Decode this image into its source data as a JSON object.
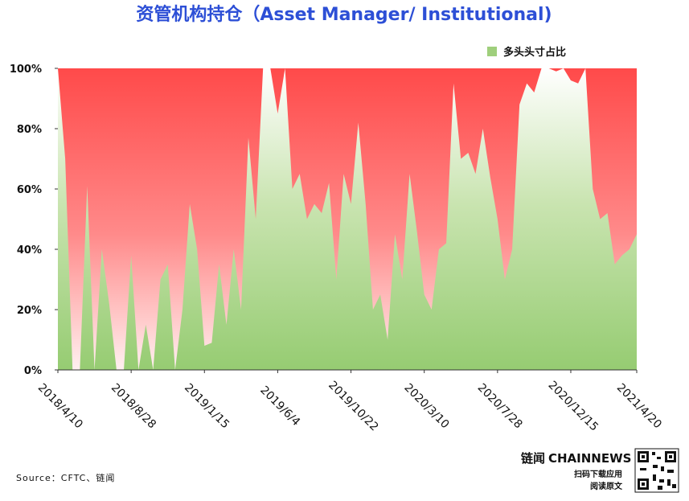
{
  "chart_data": {
    "type": "area",
    "title": "资管机构持仓（Asset Manager/ Institutional)",
    "source": "Source：CFTC、链闻",
    "brand": {
      "name": "链闻",
      "name2": "CHAINNEWS",
      "line1": "扫码下载应用",
      "line2": "阅读原文"
    },
    "legend_position": "upper right",
    "x": [
      "2018/4/10",
      "2018/4/24",
      "2018/5/8",
      "2018/5/22",
      "2018/6/5",
      "2018/6/19",
      "2018/7/3",
      "2018/7/17",
      "2018/7/31",
      "2018/8/14",
      "2018/8/28",
      "2018/9/11",
      "2018/9/25",
      "2018/10/9",
      "2018/10/23",
      "2018/11/6",
      "2018/11/20",
      "2018/12/4",
      "2018/12/18",
      "2019/1/1",
      "2019/1/15",
      "2019/1/29",
      "2019/2/12",
      "2019/2/26",
      "2019/3/12",
      "2019/3/26",
      "2019/4/9",
      "2019/4/23",
      "2019/5/7",
      "2019/5/21",
      "2019/6/4",
      "2019/6/18",
      "2019/7/2",
      "2019/7/16",
      "2019/7/30",
      "2019/8/13",
      "2019/8/27",
      "2019/9/10",
      "2019/9/24",
      "2019/10/8",
      "2019/10/22",
      "2019/11/5",
      "2019/11/19",
      "2019/12/3",
      "2019/12/17",
      "2019/12/31",
      "2020/1/14",
      "2020/1/28",
      "2020/2/11",
      "2020/2/25",
      "2020/3/10",
      "2020/3/24",
      "2020/4/7",
      "2020/4/21",
      "2020/5/5",
      "2020/5/19",
      "2020/6/2",
      "2020/6/16",
      "2020/6/30",
      "2020/7/14",
      "2020/7/28",
      "2020/8/11",
      "2020/8/25",
      "2020/9/8",
      "2020/9/22",
      "2020/10/6",
      "2020/10/20",
      "2020/11/3",
      "2020/11/17",
      "2020/12/1",
      "2020/12/15",
      "2020/12/29",
      "2021/1/12",
      "2021/1/26",
      "2021/2/9",
      "2021/2/23",
      "2021/3/9",
      "2021/3/23",
      "2021/4/6",
      "2021/4/20"
    ],
    "series": [
      {
        "name": "多头头寸占比",
        "color": "#9fcf7c",
        "values": [
          100,
          70,
          0,
          0,
          61,
          0,
          40,
          22,
          0,
          0,
          38,
          0,
          15,
          0,
          30,
          35,
          0,
          20,
          55,
          40,
          8,
          9,
          35,
          15,
          40,
          20,
          77,
          50,
          100,
          100,
          85,
          100,
          60,
          65,
          50,
          55,
          52,
          62,
          30,
          65,
          55,
          82,
          55,
          20,
          25,
          10,
          45,
          30,
          65,
          46,
          25,
          20,
          40,
          42,
          95,
          70,
          72,
          65,
          80,
          64,
          50,
          30,
          40,
          88,
          95,
          92,
          100,
          100,
          99,
          100,
          96,
          95,
          100,
          60,
          50,
          52,
          35,
          38,
          40,
          45
        ]
      }
    ],
    "xlim": [
      "2018/4/10",
      "2021/4/20"
    ],
    "xticks": [
      "2018/4/10",
      "2018/8/28",
      "2019/1/15",
      "2019/6/4",
      "2019/10/22",
      "2020/3/10",
      "2020/7/28",
      "2020/12/15",
      "2021/4/20"
    ],
    "ylim": [
      0,
      100
    ],
    "yticks": [
      {
        "value": 0,
        "label": "0%"
      },
      {
        "value": 20,
        "label": "20%"
      },
      {
        "value": 40,
        "label": "40%"
      },
      {
        "value": 60,
        "label": "60%"
      },
      {
        "value": 80,
        "label": "80%"
      },
      {
        "value": 100,
        "label": "100%"
      }
    ]
  }
}
